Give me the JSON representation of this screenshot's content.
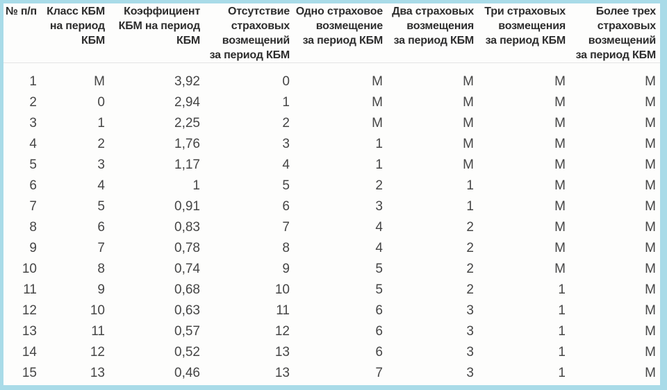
{
  "colors": {
    "frame": "#a9dbe8",
    "background": "#fdfdfc",
    "separator": "#e4e4e4",
    "header_text": "#2d2d2d",
    "cell_text": "#454545"
  },
  "chart_data": {
    "type": "table",
    "columns": [
      "№ п/п",
      "Класс КБМ\nна период\nКБМ",
      "Коэффициент\nКБМ на период\nКБМ",
      "Отсутствие\nстраховых\nвозмещений\nза период КБМ",
      "Одно страховое\nвозмещение\nза период КБМ",
      "Два страховых\nвозмещения\nза период КБМ",
      "Три страховых\nвозмещения\nза период КБМ",
      "Более трех\nстраховых\nвозмещений\nза период КБМ"
    ],
    "rows": [
      [
        "1",
        "М",
        "3,92",
        "0",
        "М",
        "М",
        "М",
        "М"
      ],
      [
        "2",
        "0",
        "2,94",
        "1",
        "М",
        "М",
        "М",
        "М"
      ],
      [
        "3",
        "1",
        "2,25",
        "2",
        "М",
        "М",
        "М",
        "М"
      ],
      [
        "4",
        "2",
        "1,76",
        "3",
        "1",
        "М",
        "М",
        "М"
      ],
      [
        "5",
        "3",
        "1,17",
        "4",
        "1",
        "М",
        "М",
        "М"
      ],
      [
        "6",
        "4",
        "1",
        "5",
        "2",
        "1",
        "М",
        "М"
      ],
      [
        "7",
        "5",
        "0,91",
        "6",
        "3",
        "1",
        "М",
        "М"
      ],
      [
        "8",
        "6",
        "0,83",
        "7",
        "4",
        "2",
        "М",
        "М"
      ],
      [
        "9",
        "7",
        "0,78",
        "8",
        "4",
        "2",
        "М",
        "М"
      ],
      [
        "10",
        "8",
        "0,74",
        "9",
        "5",
        "2",
        "М",
        "М"
      ],
      [
        "11",
        "9",
        "0,68",
        "10",
        "5",
        "2",
        "1",
        "М"
      ],
      [
        "12",
        "10",
        "0,63",
        "11",
        "6",
        "3",
        "1",
        "М"
      ],
      [
        "13",
        "11",
        "0,57",
        "12",
        "6",
        "3",
        "1",
        "М"
      ],
      [
        "14",
        "12",
        "0,52",
        "13",
        "6",
        "3",
        "1",
        "М"
      ],
      [
        "15",
        "13",
        "0,46",
        "13",
        "7",
        "3",
        "1",
        "М"
      ]
    ]
  }
}
